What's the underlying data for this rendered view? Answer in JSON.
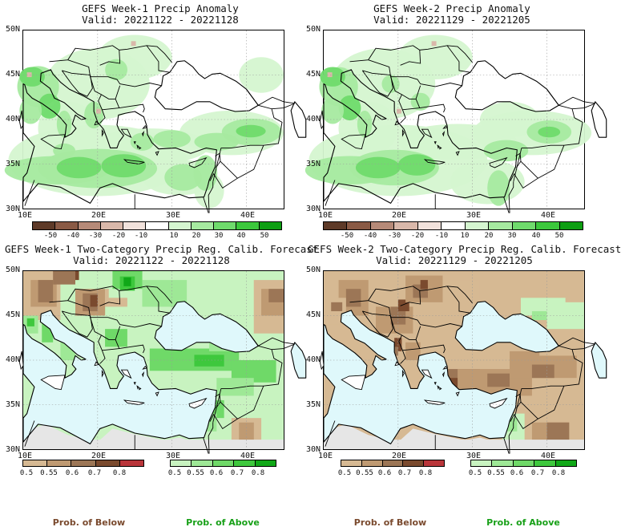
{
  "panels": {
    "tl": {
      "title": "GEFS Week-1 Precip Anomaly",
      "valid": "Valid: 20221122 - 20221128"
    },
    "tr": {
      "title": "GEFS Week-2 Precip Anomaly",
      "valid": "Valid: 20221129 - 20221205"
    },
    "bl": {
      "title": "GEFS Week-1 Two-Category Precip Reg. Calib. Forecast",
      "valid": "Valid: 20221122 - 20221128"
    },
    "br": {
      "title": "GEFS Week-2 Two-Category Precip Reg. Calib. Forecast",
      "valid": "Valid: 20221129 - 20221205"
    }
  },
  "lat_labels": [
    "50N",
    "45N",
    "40N",
    "35N",
    "30N"
  ],
  "lon_labels": [
    "10E",
    "20E",
    "30E",
    "40E"
  ],
  "anomaly_colorbar": {
    "labels": [
      "-50",
      "-40",
      "-30",
      "-20",
      "-10",
      "10",
      "20",
      "30",
      "40",
      "50"
    ],
    "colors": [
      "#5e3a28",
      "#8a5a45",
      "#b68a78",
      "#d9b8aa",
      "#f1e2dc",
      "#ffffff",
      "#d5f6d0",
      "#a6eaa0",
      "#6fdb6c",
      "#3cc83c",
      "#0d9e12"
    ]
  },
  "below_colorbar": {
    "labels": [
      "0.5",
      "0.55",
      "0.6",
      "0.7",
      "0.8"
    ],
    "colors": [
      "#d6b993",
      "#bf9a72",
      "#9c7656",
      "#7a4a2e",
      "#b9353a"
    ]
  },
  "above_colorbar": {
    "labels": [
      "0.5",
      "0.55",
      "0.6",
      "0.7",
      "0.8"
    ],
    "colors": [
      "#c8f3c0",
      "#9ee896",
      "#6fd968",
      "#3ec83d",
      "#10a818"
    ]
  },
  "legend": {
    "below": "Prob. of Below",
    "above": "Prob. of Above",
    "below_color": "#7a4a2e",
    "above_color": "#18a018"
  },
  "colors": {
    "sea": "#dff8fb",
    "nodata": "#e6e6e6"
  }
}
